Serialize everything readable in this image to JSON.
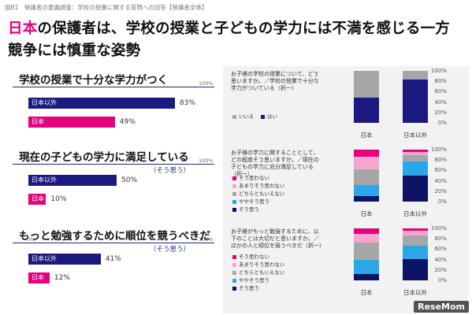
{
  "caption": "図B1　保護者の意識調査：学校の授業に関する質問への回答【保護者全体】",
  "headline": {
    "line1_accent": "日本",
    "line1_rest": "の保護者は、学校の授業と子どもの学力には不満を感じる一方",
    "line2": "競争には慎重な姿勢"
  },
  "colors": {
    "navy": "#1a1a80",
    "pink": "#e4007f",
    "gray": "#a6a6a6",
    "lightgray": "#d0d0d0",
    "lightpink": "#f7a6d0",
    "blue": "#2aa7e8",
    "dark_navy": "#0d1466"
  },
  "axis": {
    "min_label": "0%",
    "max_label": "100%"
  },
  "logo": "ReseMom",
  "chart_data": [
    {
      "type": "bar",
      "title": "学校の授業で十分な学力がつく",
      "subtitle": "",
      "categories": [
        "日本以外",
        "日本"
      ],
      "values": [
        83,
        49
      ],
      "value_labels": [
        "83%",
        "49%"
      ],
      "xlim": [
        0,
        100
      ]
    },
    {
      "type": "bar",
      "title": "現在の子どもの学力に満足している",
      "subtitle": "（そう思う）",
      "categories": [
        "日本以外",
        "日本"
      ],
      "values": [
        50,
        10
      ],
      "value_labels": [
        "50%",
        "10%"
      ],
      "xlim": [
        0,
        100
      ]
    },
    {
      "type": "bar",
      "title": "もっと勉強するために順位を競うべきだ",
      "subtitle": "（そう思う）",
      "categories": [
        "日本以外",
        "日本"
      ],
      "values": [
        41,
        12
      ],
      "value_labels": [
        "41%",
        "12%"
      ],
      "xlim": [
        0,
        100
      ]
    },
    {
      "type": "bar",
      "stacked": true,
      "question": "お子様の学校の授業について、どう思いますか。／学校の授業で十分な学力がついている（択一）",
      "categories": [
        "日本",
        "日本以外"
      ],
      "series": [
        {
          "name": "はい",
          "color": "#1a1a80",
          "values": [
            49,
            83
          ]
        },
        {
          "name": "いいえ",
          "color": "#a6a6a6",
          "values": [
            51,
            17
          ]
        }
      ],
      "yticks": [
        "0%",
        "20%",
        "40%",
        "60%",
        "80%",
        "100%"
      ],
      "ylim": [
        0,
        100
      ]
    },
    {
      "type": "bar",
      "stacked": true,
      "question": "お子様の学力に関することとして、どの程度そう思いますか。／現在の子どもの学力に充分満足している（択一）",
      "categories": [
        "日本",
        "日本以外"
      ],
      "series": [
        {
          "name": "そう思う",
          "color": "#0d1466",
          "values": [
            10,
            50
          ]
        },
        {
          "name": "ややそう思う",
          "color": "#2aa7e8",
          "values": [
            22,
            27
          ]
        },
        {
          "name": "どちらともいえない",
          "color": "#a6a6a6",
          "values": [
            30,
            12
          ]
        },
        {
          "name": "あまりそう思わない",
          "color": "#f7a6d0",
          "values": [
            25,
            7
          ]
        },
        {
          "name": "そう思わない",
          "color": "#e4007f",
          "values": [
            13,
            4
          ]
        }
      ],
      "yticks": [
        "0%",
        "20%",
        "40%",
        "60%",
        "80%",
        "100%"
      ],
      "ylim": [
        0,
        100
      ]
    },
    {
      "type": "bar",
      "stacked": true,
      "question": "お子様がもっと勉強するために、以下のことは大切だと思いますか。／ほかの人と順位を競うべきだ（択一）",
      "categories": [
        "日本",
        "日本以外"
      ],
      "series": [
        {
          "name": "そう思う",
          "color": "#0d1466",
          "values": [
            12,
            41
          ]
        },
        {
          "name": "ややそう思う",
          "color": "#2aa7e8",
          "values": [
            28,
            25
          ]
        },
        {
          "name": "どちらともいえない",
          "color": "#a6a6a6",
          "values": [
            32,
            20
          ]
        },
        {
          "name": "あまりそう思わない",
          "color": "#f7a6d0",
          "values": [
            18,
            9
          ]
        },
        {
          "name": "そう思わない",
          "color": "#e4007f",
          "values": [
            10,
            5
          ]
        }
      ],
      "yticks": [
        "0%",
        "20%",
        "40%",
        "60%",
        "80%",
        "100%"
      ],
      "ylim": [
        0,
        100
      ]
    }
  ]
}
